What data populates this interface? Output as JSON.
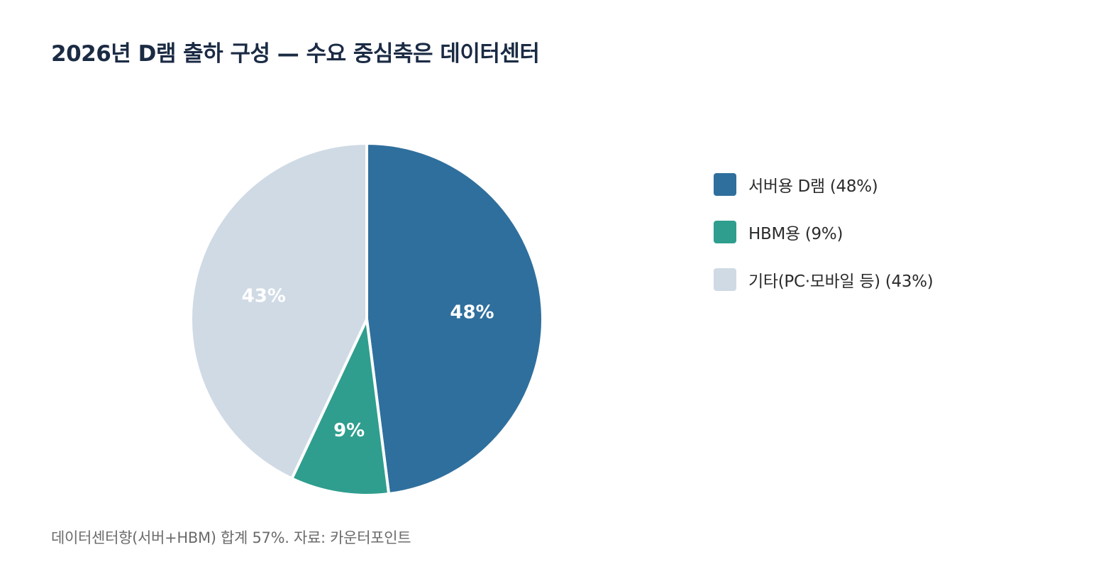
{
  "title": "2026년 D램 출하 구성 — 수요 중심축은 데이터센터",
  "footnote": "데이터센터향(서버+HBM) 합계 57%. 자료: 카운터포인트",
  "colors": {
    "server": "#2f6f9d",
    "hbm": "#2f9e8e",
    "other": "#cfdae5",
    "title": "#1b2b44"
  },
  "chart_data": {
    "type": "pie",
    "slices": [
      {
        "name": "서버용 D램 (48%)",
        "value": 48,
        "label": "48%",
        "color": "#2f6f9d"
      },
      {
        "name": "HBM용 (9%)",
        "value": 9,
        "label": "9%",
        "color": "#2f9e8e"
      },
      {
        "name": "기타(PC·모바일 등) (43%)",
        "value": 43,
        "label": "43%",
        "color": "#cfdae5"
      }
    ],
    "start": "12 o'clock",
    "direction": "clockwise",
    "legend_position": "right"
  }
}
